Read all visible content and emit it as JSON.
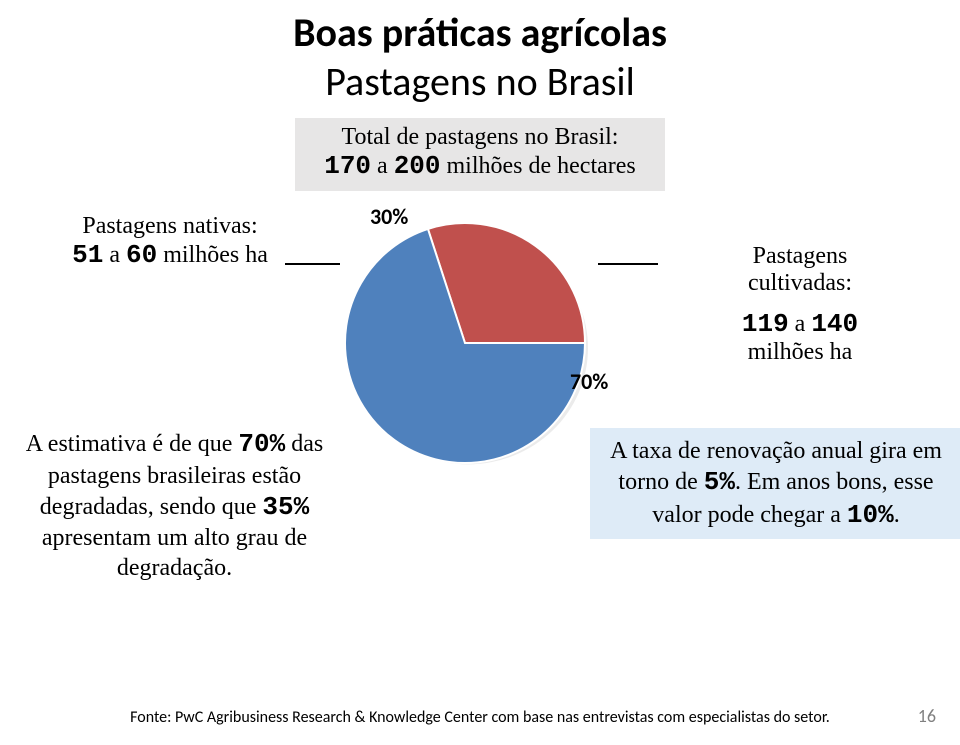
{
  "title": {
    "line1": "Boas práticas agrícolas",
    "line2": "Pastagens no Brasil"
  },
  "total_box": {
    "line1": "Total de pastagens no Brasil:",
    "range_low": "170",
    "range_mid": " a ",
    "range_high": "200",
    "unit": " milhões de hectares"
  },
  "native": {
    "label": "Pastagens nativas:",
    "low": "51",
    "mid": " a ",
    "high": "60",
    "unit": " milhões ha"
  },
  "cultivated": {
    "label": "Pastagens cultivadas:",
    "low": "119",
    "mid": " a ",
    "high": "140",
    "unit": "milhões ha"
  },
  "estimate": {
    "p1a": "A estimativa é de que ",
    "pct1": "70%",
    "p1b": " das pastagens brasileiras estão degradadas, sendo que ",
    "pct2": "35%",
    "p1c": " apresentam um alto grau de degradação."
  },
  "renewal": {
    "p1a": "A taxa de renovação anual  gira em torno de ",
    "pct1": "5%",
    "p1b": ". Em anos bons, esse valor pode chegar a ",
    "pct2": "10%",
    "p1c": "."
  },
  "pie": {
    "type": "pie",
    "values": [
      30,
      70
    ],
    "labels": [
      "30%",
      "70%"
    ],
    "colors": [
      "#c0504d",
      "#4f81bd"
    ],
    "stroke": "#ffffff",
    "stroke_width": 2,
    "diameter": 240,
    "label_fontsize": 22,
    "label_fontweight": 700,
    "label_color": "#000000",
    "start_angle_deg": -18,
    "background_color": "#ffffff"
  },
  "colors": {
    "total_box_bg": "#e7e6e6",
    "renewal_box_bg": "#deebf7",
    "text": "#000000",
    "page_num": "#808080"
  },
  "source": "Fonte: PwC Agribusiness Research & Knowledge Center com base nas entrevistas com especialistas do setor.",
  "page_number": "16"
}
